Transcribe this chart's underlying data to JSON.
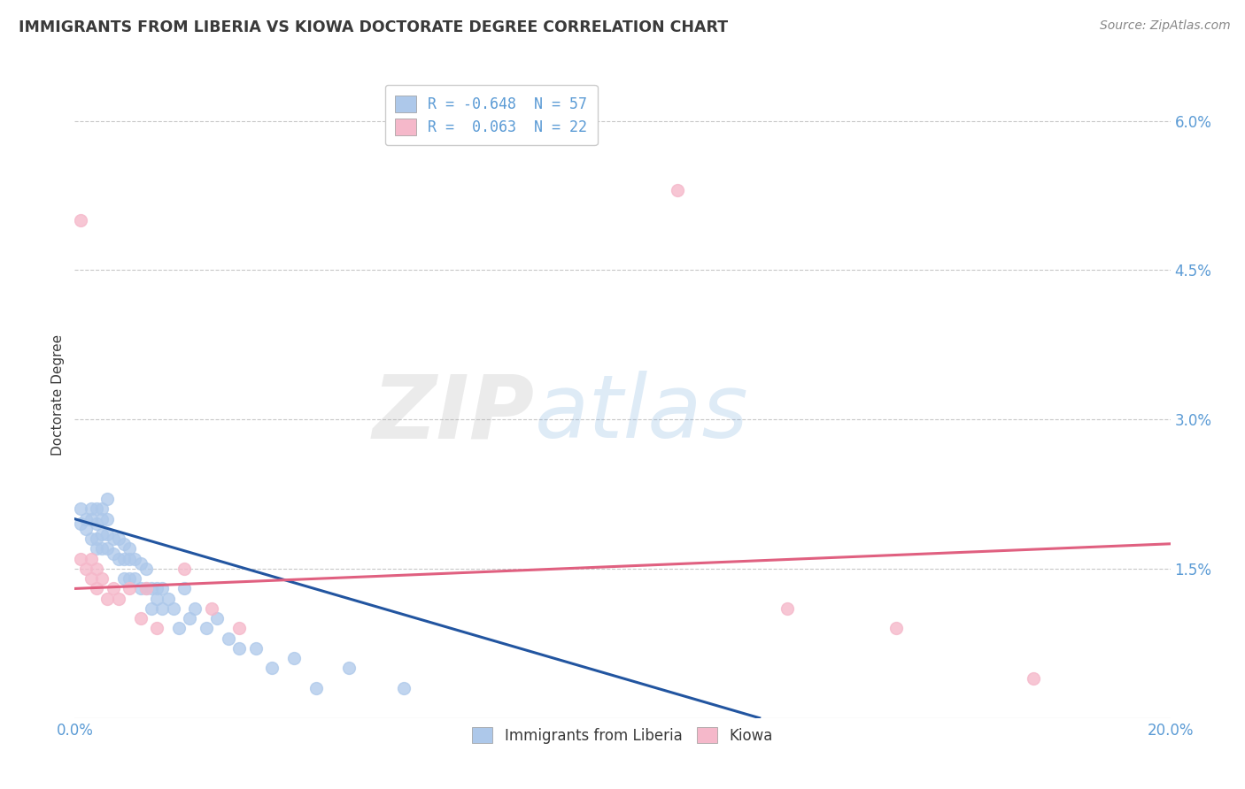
{
  "title": "IMMIGRANTS FROM LIBERIA VS KIOWA DOCTORATE DEGREE CORRELATION CHART",
  "source": "Source: ZipAtlas.com",
  "ylabel": "Doctorate Degree",
  "xlim": [
    0.0,
    0.2
  ],
  "ylim": [
    0.0,
    0.065
  ],
  "ytick_vals": [
    0.015,
    0.03,
    0.045,
    0.06
  ],
  "ytick_labels": [
    "1.5%",
    "3.0%",
    "4.5%",
    "6.0%"
  ],
  "legend_entries": [
    {
      "label": "R = -0.648  N = 57",
      "color": "#adc8ea"
    },
    {
      "label": "R =  0.063  N = 22",
      "color": "#f5b8ca"
    }
  ],
  "bottom_legend": [
    {
      "label": "Immigrants from Liberia",
      "color": "#adc8ea"
    },
    {
      "label": "Kiowa",
      "color": "#f5b8ca"
    }
  ],
  "blue_scatter_x": [
    0.001,
    0.001,
    0.002,
    0.002,
    0.003,
    0.003,
    0.003,
    0.004,
    0.004,
    0.004,
    0.004,
    0.005,
    0.005,
    0.005,
    0.005,
    0.006,
    0.006,
    0.006,
    0.006,
    0.007,
    0.007,
    0.008,
    0.008,
    0.009,
    0.009,
    0.009,
    0.01,
    0.01,
    0.01,
    0.011,
    0.011,
    0.012,
    0.012,
    0.013,
    0.013,
    0.014,
    0.014,
    0.015,
    0.015,
    0.016,
    0.016,
    0.017,
    0.018,
    0.019,
    0.02,
    0.021,
    0.022,
    0.024,
    0.026,
    0.028,
    0.03,
    0.033,
    0.036,
    0.04,
    0.044,
    0.05,
    0.06
  ],
  "blue_scatter_y": [
    0.0195,
    0.021,
    0.02,
    0.019,
    0.021,
    0.02,
    0.018,
    0.0195,
    0.018,
    0.021,
    0.017,
    0.02,
    0.0185,
    0.017,
    0.021,
    0.02,
    0.0185,
    0.017,
    0.022,
    0.018,
    0.0165,
    0.018,
    0.016,
    0.0175,
    0.016,
    0.014,
    0.017,
    0.016,
    0.014,
    0.016,
    0.014,
    0.0155,
    0.013,
    0.015,
    0.013,
    0.013,
    0.011,
    0.013,
    0.012,
    0.013,
    0.011,
    0.012,
    0.011,
    0.009,
    0.013,
    0.01,
    0.011,
    0.009,
    0.01,
    0.008,
    0.007,
    0.007,
    0.005,
    0.006,
    0.003,
    0.005,
    0.003
  ],
  "pink_scatter_x": [
    0.001,
    0.001,
    0.002,
    0.003,
    0.003,
    0.004,
    0.004,
    0.005,
    0.006,
    0.007,
    0.008,
    0.01,
    0.012,
    0.013,
    0.015,
    0.02,
    0.025,
    0.03,
    0.11,
    0.13,
    0.15,
    0.175
  ],
  "pink_scatter_y": [
    0.05,
    0.016,
    0.015,
    0.016,
    0.014,
    0.015,
    0.013,
    0.014,
    0.012,
    0.013,
    0.012,
    0.013,
    0.01,
    0.013,
    0.009,
    0.015,
    0.011,
    0.009,
    0.053,
    0.011,
    0.009,
    0.004
  ],
  "blue_line_x": [
    0.0,
    0.125
  ],
  "blue_line_y": [
    0.02,
    0.0
  ],
  "pink_line_x": [
    0.0,
    0.2
  ],
  "pink_line_y": [
    0.013,
    0.0175
  ],
  "watermark_zip": "ZIP",
  "watermark_atlas": "atlas",
  "background_color": "#ffffff",
  "grid_color": "#c8c8c8",
  "title_color": "#3a3a3a",
  "axis_label_color": "#5b9bd5",
  "blue_dot_color": "#adc8ea",
  "pink_dot_color": "#f5b8ca",
  "blue_line_color": "#2255a0",
  "pink_line_color": "#e06080"
}
